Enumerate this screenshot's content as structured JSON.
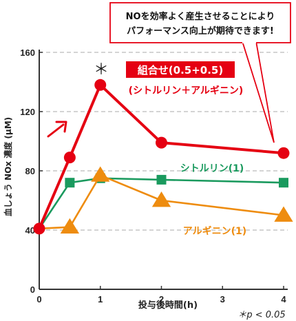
{
  "callout": {
    "line1": "NOを効率よく産生させることにより",
    "line2": "パフォーマンス向上が期待できます!"
  },
  "significance": {
    "marker": "＊",
    "note": "＊p < 0.05"
  },
  "colors": {
    "combo": "#e50012",
    "citrulline": "#1a9a5e",
    "arginine": "#ee8c0f",
    "grid": "#bbbbbb",
    "axis": "#333333"
  },
  "chart_data": {
    "type": "line",
    "xlabel": "投与後時間(h)",
    "ylabel": "血しょう NOx 濃度 (μM)",
    "xlim": [
      0,
      4
    ],
    "ylim": [
      0,
      160
    ],
    "xticks": [
      0,
      1,
      2,
      3,
      4
    ],
    "yticks": [
      0,
      40,
      80,
      120,
      160
    ],
    "grid": "horizontal dashed",
    "series": [
      {
        "key": "combo",
        "name": "組合せ(0.5+0.5)",
        "sublabel": "(シトルリン＋アルギニン)",
        "marker": "circle",
        "x": [
          0,
          0.5,
          1,
          2,
          4
        ],
        "y": [
          41,
          89,
          138,
          99,
          92
        ]
      },
      {
        "key": "citrulline",
        "name": "シトルリン(1)",
        "marker": "square",
        "x": [
          0,
          0.5,
          1,
          2,
          4
        ],
        "y": [
          41,
          72,
          75,
          74,
          72
        ]
      },
      {
        "key": "arginine",
        "name": "アルギニン(1)",
        "marker": "triangle",
        "x": [
          0,
          0.5,
          1,
          2,
          4
        ],
        "y": [
          41,
          42,
          77,
          60,
          50
        ]
      }
    ]
  }
}
